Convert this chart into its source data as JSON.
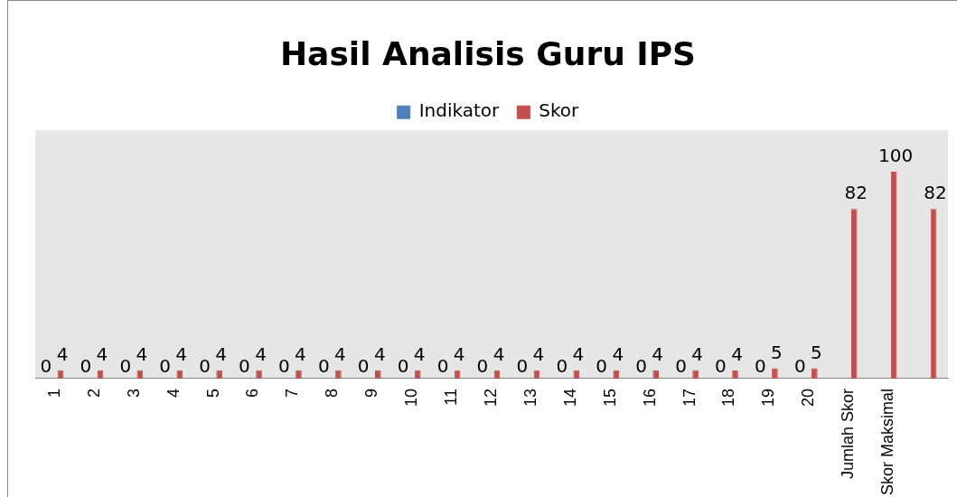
{
  "chart_data": {
    "type": "bar",
    "title": "Hasil Analisis Guru IPS",
    "categories": [
      "1",
      "2",
      "3",
      "4",
      "5",
      "6",
      "7",
      "8",
      "9",
      "10",
      "11",
      "12",
      "13",
      "14",
      "15",
      "16",
      "17",
      "18",
      "19",
      "20",
      "Jumlah Skor",
      "Skor Maksimal",
      null
    ],
    "series": [
      {
        "name": "Indikator",
        "color": "#4f81bd",
        "values": [
          0,
          0,
          0,
          0,
          0,
          0,
          0,
          0,
          0,
          0,
          0,
          0,
          0,
          0,
          0,
          0,
          0,
          0,
          0,
          0,
          null,
          null,
          null
        ]
      },
      {
        "name": "Skor",
        "color": "#c0504d",
        "values": [
          4,
          4,
          4,
          4,
          4,
          4,
          4,
          4,
          4,
          4,
          4,
          4,
          4,
          4,
          4,
          4,
          4,
          4,
          5,
          5,
          82,
          100,
          82
        ]
      }
    ],
    "data_labels": true,
    "legend": "top",
    "grid": false,
    "relative": false
  }
}
